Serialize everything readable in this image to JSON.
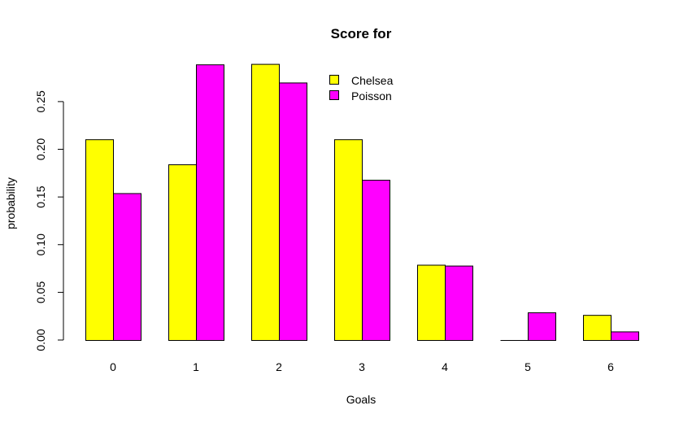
{
  "chart_data": {
    "type": "bar",
    "title": "Score for",
    "xlabel": "Goals",
    "ylabel": "probability",
    "categories": [
      "0",
      "1",
      "2",
      "3",
      "4",
      "5",
      "6"
    ],
    "series": [
      {
        "name": "Chelsea",
        "color": "#ffff00",
        "values": [
          0.2105,
          0.1842,
          0.2895,
          0.2105,
          0.0789,
          0.0,
          0.0263
        ]
      },
      {
        "name": "Poisson",
        "color": "#ff00ff",
        "values": [
          0.154,
          0.289,
          0.27,
          0.168,
          0.078,
          0.029,
          0.009
        ]
      }
    ],
    "ylim": [
      0,
      0.29
    ],
    "yticks": [
      0,
      0.05,
      0.1,
      0.15,
      0.2,
      0.25
    ],
    "ytick_labels": [
      "0.00",
      "0.05",
      "0.10",
      "0.15",
      "0.20",
      "0.25"
    ],
    "grid": false,
    "legend_position": "top-center"
  }
}
